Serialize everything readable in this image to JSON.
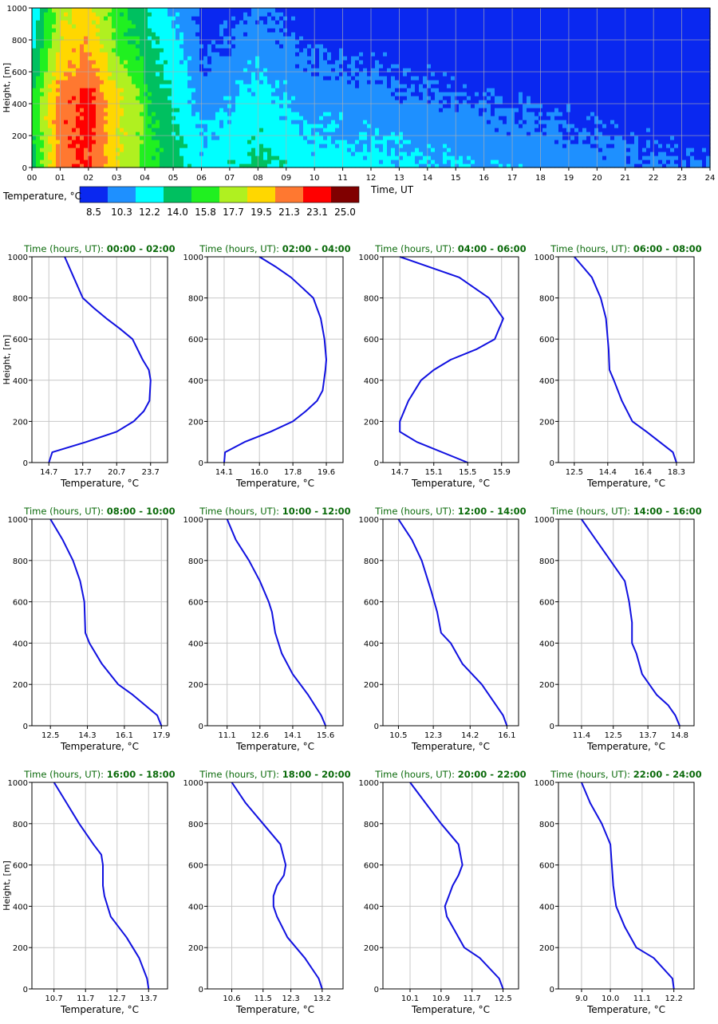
{
  "colorbar": {
    "label": "Temperature, °C",
    "ticks": [
      "8.5",
      "10.3",
      "12.2",
      "14.0",
      "15.8",
      "17.7",
      "19.5",
      "21.3",
      "23.1",
      "25.0"
    ],
    "colors": [
      "#0a28f0",
      "#1e90ff",
      "#00ffff",
      "#00c060",
      "#20f020",
      "#b0f020",
      "#ffd700",
      "#ff7830",
      "#ff0000",
      "#800000"
    ]
  },
  "chart_data": [
    {
      "type": "heatmap",
      "xlabel": "Time, UT",
      "ylabel": "Height, [m]",
      "x_ticks": [
        "00",
        "01",
        "02",
        "03",
        "04",
        "05",
        "06",
        "07",
        "08",
        "09",
        "10",
        "11",
        "12",
        "13",
        "14",
        "15",
        "16",
        "17",
        "18",
        "19",
        "20",
        "21",
        "22",
        "23",
        "24"
      ],
      "y_ticks": [
        "0",
        "200",
        "400",
        "600",
        "800",
        "1000"
      ],
      "xlim": [
        0,
        24
      ],
      "ylim": [
        0,
        1000
      ],
      "grid": true
    },
    {
      "type": "line",
      "title_prefix": "Time (hours, UT):",
      "title_range": "00:00 - 02:00",
      "xlabel": "Temperature, °C",
      "ylabel": "Height, [m]",
      "xticks": [
        "14.7",
        "17.7",
        "20.7",
        "23.7"
      ],
      "xlim": [
        13.2,
        25.2
      ],
      "yticks": [
        "0",
        "200",
        "400",
        "600",
        "800",
        "1000"
      ],
      "ylim": [
        0,
        1000
      ],
      "x": [
        14.7,
        15.0,
        18.0,
        20.7,
        22.2,
        23.1,
        23.6,
        23.7,
        23.55,
        23.0,
        22.1,
        21.0,
        19.8,
        18.7,
        17.7,
        16.9,
        16.1
      ],
      "y": [
        0,
        50,
        100,
        150,
        200,
        250,
        300,
        400,
        450,
        500,
        600,
        650,
        700,
        750,
        800,
        900,
        1000
      ]
    },
    {
      "type": "line",
      "title_prefix": "Time (hours, UT):",
      "title_range": "02:00 - 04:00",
      "xlabel": "Temperature, °C",
      "xticks": [
        "14.1",
        "16.0",
        "17.8",
        "19.6"
      ],
      "xlim": [
        13.2,
        20.5
      ],
      "yticks": [
        "0",
        "200",
        "400",
        "600",
        "800",
        "1000"
      ],
      "ylim": [
        0,
        1000
      ],
      "x": [
        14.1,
        14.15,
        15.2,
        16.6,
        17.8,
        18.5,
        19.1,
        19.4,
        19.55,
        19.6,
        19.5,
        19.3,
        18.9,
        18.3,
        17.7,
        16.9,
        16.0
      ],
      "y": [
        0,
        50,
        100,
        150,
        200,
        250,
        300,
        350,
        450,
        500,
        600,
        700,
        800,
        850,
        900,
        950,
        1000
      ]
    },
    {
      "type": "line",
      "title_prefix": "Time (hours, UT):",
      "title_range": "04:00 - 06:00",
      "xlabel": "Temperature, °C",
      "xticks": [
        "14.7",
        "15.1",
        "15.5",
        "15.9"
      ],
      "xlim": [
        14.5,
        16.1
      ],
      "yticks": [
        "0",
        "200",
        "400",
        "600",
        "800",
        "1000"
      ],
      "ylim": [
        0,
        1000
      ],
      "x": [
        15.5,
        14.9,
        14.7,
        14.7,
        14.8,
        14.95,
        15.1,
        15.3,
        15.6,
        15.82,
        15.92,
        15.75,
        15.4,
        14.7
      ],
      "y": [
        0,
        100,
        150,
        200,
        300,
        400,
        450,
        500,
        550,
        600,
        700,
        800,
        900,
        1000
      ]
    },
    {
      "type": "line",
      "title_prefix": "Time (hours, UT):",
      "title_range": "06:00 - 08:00",
      "xlabel": "Temperature, °C",
      "xticks": [
        "12.5",
        "14.4",
        "16.4",
        "18.3"
      ],
      "xlim": [
        11.6,
        19.3
      ],
      "yticks": [
        "0",
        "200",
        "400",
        "600",
        "800",
        "1000"
      ],
      "ylim": [
        0,
        1000
      ],
      "x": [
        18.3,
        18.1,
        16.6,
        15.8,
        15.2,
        14.75,
        14.5,
        14.45,
        14.4,
        14.3,
        14.0,
        13.5,
        13.0,
        12.5
      ],
      "y": [
        0,
        50,
        150,
        200,
        300,
        400,
        450,
        550,
        600,
        700,
        800,
        900,
        950,
        1000
      ]
    },
    {
      "type": "line",
      "title_prefix": "Time (hours, UT):",
      "title_range": "08:00 - 10:00",
      "xlabel": "Temperature, °C",
      "xticks": [
        "12.5",
        "14.3",
        "16.1",
        "17.9"
      ],
      "xlim": [
        11.6,
        18.2
      ],
      "yticks": [
        "0",
        "200",
        "400",
        "600",
        "800",
        "1000"
      ],
      "ylim": [
        0,
        1000
      ],
      "x": [
        17.9,
        17.7,
        16.5,
        15.8,
        15.0,
        14.4,
        14.2,
        14.15,
        14.05,
        13.95,
        13.6,
        13.1,
        12.5
      ],
      "y": [
        0,
        50,
        150,
        200,
        300,
        400,
        450,
        600,
        650,
        700,
        800,
        900,
        1000
      ]
    },
    {
      "type": "line",
      "title_prefix": "Time (hours, UT):",
      "title_range": "10:00 - 12:00",
      "xlabel": "Temperature, °C",
      "xticks": [
        "11.1",
        "12.6",
        "14.1",
        "15.6"
      ],
      "xlim": [
        10.2,
        16.4
      ],
      "yticks": [
        "0",
        "200",
        "400",
        "600",
        "800",
        "1000"
      ],
      "ylim": [
        0,
        1000
      ],
      "x": [
        15.6,
        15.4,
        14.8,
        14.1,
        13.6,
        13.3,
        13.15,
        13.0,
        12.6,
        12.1,
        11.5,
        11.1
      ],
      "y": [
        0,
        50,
        150,
        250,
        350,
        450,
        550,
        600,
        700,
        800,
        900,
        1000
      ]
    },
    {
      "type": "line",
      "title_prefix": "Time (hours, UT):",
      "title_range": "12:00 - 14:00",
      "xlabel": "Temperature, °C",
      "xticks": [
        "10.5",
        "12.3",
        "14.2",
        "16.1"
      ],
      "xlim": [
        9.7,
        16.7
      ],
      "yticks": [
        "0",
        "200",
        "400",
        "600",
        "800",
        "1000"
      ],
      "ylim": [
        0,
        1000
      ],
      "x": [
        16.1,
        15.9,
        14.8,
        13.8,
        13.2,
        12.7,
        12.5,
        12.2,
        11.7,
        11.2,
        10.5
      ],
      "y": [
        0,
        50,
        200,
        300,
        400,
        450,
        550,
        650,
        800,
        900,
        1000
      ]
    },
    {
      "type": "line",
      "title_prefix": "Time (hours, UT):",
      "title_range": "14:00 - 16:00",
      "xlabel": "Temperature, °C",
      "xticks": [
        "11.4",
        "12.5",
        "13.7",
        "14.8"
      ],
      "xlim": [
        10.6,
        15.3
      ],
      "yticks": [
        "0",
        "200",
        "400",
        "600",
        "800",
        "1000"
      ],
      "ylim": [
        0,
        1000
      ],
      "x": [
        14.8,
        14.65,
        14.4,
        14.0,
        13.5,
        13.3,
        13.15,
        13.15,
        13.1,
        13.05,
        12.9,
        12.4,
        11.9,
        11.4
      ],
      "y": [
        0,
        50,
        100,
        150,
        250,
        350,
        400,
        500,
        550,
        600,
        700,
        800,
        900,
        1000
      ]
    },
    {
      "type": "line",
      "title_prefix": "Time (hours, UT):",
      "title_range": "16:00 - 18:00",
      "xlabel": "Temperature, °C",
      "ylabel": "Height, [m]",
      "xticks": [
        "10.7",
        "11.7",
        "12.7",
        "13.7"
      ],
      "xlim": [
        10.0,
        14.3
      ],
      "yticks": [
        "0",
        "200",
        "400",
        "600",
        "800",
        "1000"
      ],
      "ylim": [
        0,
        1000
      ],
      "x": [
        13.7,
        13.65,
        13.4,
        13.0,
        12.5,
        12.3,
        12.25,
        12.25,
        12.2,
        11.95,
        11.5,
        11.1,
        10.7
      ],
      "y": [
        0,
        50,
        150,
        250,
        350,
        450,
        500,
        600,
        650,
        700,
        800,
        900,
        1000
      ]
    },
    {
      "type": "line",
      "title_prefix": "Time (hours, UT):",
      "title_range": "18:00 - 20:00",
      "xlabel": "Temperature, °C",
      "xticks": [
        "10.6",
        "11.5",
        "12.3",
        "13.2"
      ],
      "xlim": [
        9.9,
        13.8
      ],
      "yticks": [
        "0",
        "200",
        "400",
        "600",
        "800",
        "1000"
      ],
      "ylim": [
        0,
        1000
      ],
      "x": [
        13.2,
        13.1,
        12.7,
        12.2,
        11.9,
        11.8,
        11.8,
        11.9,
        12.1,
        12.15,
        12.0,
        11.5,
        11.0,
        10.6
      ],
      "y": [
        0,
        50,
        150,
        250,
        350,
        400,
        450,
        500,
        550,
        600,
        700,
        800,
        900,
        1000
      ]
    },
    {
      "type": "line",
      "title_prefix": "Time (hours, UT):",
      "title_range": "20:00 - 22:00",
      "xlabel": "Temperature, °C",
      "xticks": [
        "10.1",
        "10.9",
        "11.7",
        "12.5"
      ],
      "xlim": [
        9.4,
        12.9
      ],
      "yticks": [
        "0",
        "200",
        "400",
        "600",
        "800",
        "1000"
      ],
      "ylim": [
        0,
        1000
      ],
      "x": [
        12.5,
        12.4,
        11.9,
        11.5,
        11.2,
        11.05,
        11.0,
        11.1,
        11.2,
        11.35,
        11.45,
        11.35,
        10.9,
        10.5,
        10.1
      ],
      "y": [
        0,
        50,
        150,
        200,
        300,
        350,
        400,
        450,
        500,
        550,
        600,
        700,
        800,
        900,
        1000
      ]
    },
    {
      "type": "line",
      "title_prefix": "Time (hours, UT):",
      "title_range": "22:00 - 24:00",
      "xlabel": "Temperature, °C",
      "xticks": [
        "9.0",
        "10.0",
        "11.1",
        "12.2"
      ],
      "xlim": [
        8.2,
        12.9
      ],
      "yticks": [
        "0",
        "200",
        "400",
        "600",
        "800",
        "1000"
      ],
      "ylim": [
        0,
        1000
      ],
      "x": [
        12.2,
        12.15,
        11.5,
        10.9,
        10.5,
        10.2,
        10.1,
        10.05,
        10.0,
        9.7,
        9.3,
        9.0
      ],
      "y": [
        0,
        50,
        150,
        200,
        300,
        400,
        500,
        600,
        700,
        800,
        900,
        1000
      ]
    }
  ]
}
